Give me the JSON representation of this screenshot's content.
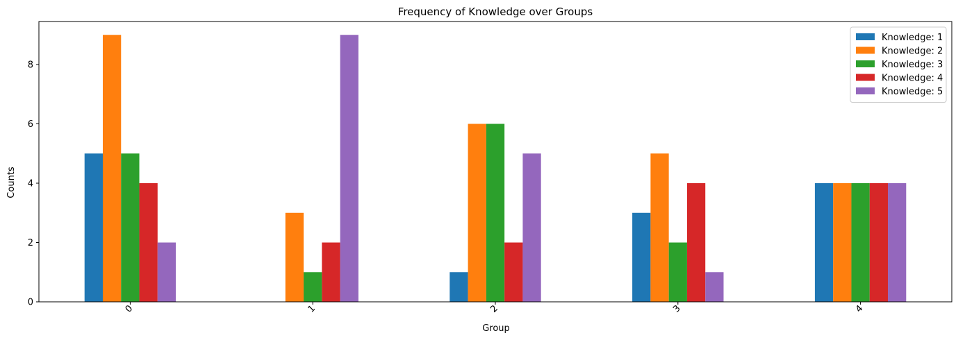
{
  "chart_data": {
    "type": "bar",
    "title": "Frequency of Knowledge over Groups",
    "xlabel": "Group",
    "ylabel": "Counts",
    "categories": [
      "0",
      "1",
      "2",
      "3",
      "4"
    ],
    "ylim": [
      0,
      9.45
    ],
    "yticks": [
      0,
      2,
      4,
      6,
      8
    ],
    "grid": false,
    "legend_position": "top-right",
    "series": [
      {
        "name": "Knowledge: 1",
        "color": "#1f77b4",
        "values": [
          5,
          0,
          1,
          3,
          4
        ]
      },
      {
        "name": "Knowledge: 2",
        "color": "#ff7f0e",
        "values": [
          9,
          3,
          6,
          5,
          4
        ]
      },
      {
        "name": "Knowledge: 3",
        "color": "#2ca02c",
        "values": [
          5,
          1,
          6,
          2,
          4
        ]
      },
      {
        "name": "Knowledge: 4",
        "color": "#d62728",
        "values": [
          4,
          2,
          2,
          4,
          4
        ]
      },
      {
        "name": "Knowledge: 5",
        "color": "#9467bd",
        "values": [
          2,
          9,
          5,
          1,
          4
        ]
      }
    ]
  }
}
